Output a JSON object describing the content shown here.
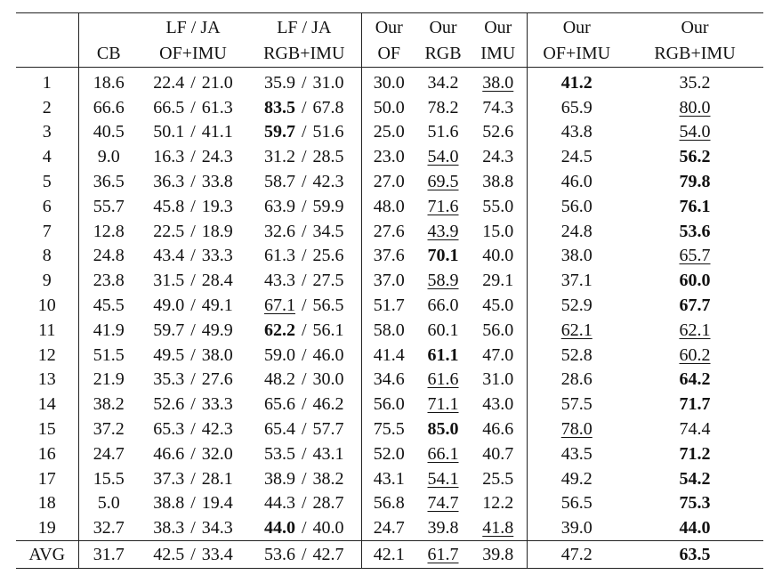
{
  "table": {
    "header_top": [
      "",
      "",
      "LF / JA",
      "LF / JA",
      "Our",
      "Our",
      "Our",
      "Our",
      "Our"
    ],
    "header_bottom": [
      "",
      "CB",
      "OF+IMU",
      "RGB+IMU",
      "OF",
      "RGB",
      "IMU",
      "OF+IMU",
      "RGB+IMU"
    ],
    "rows": [
      {
        "label": "1",
        "cb": "18.6",
        "lf_of": [
          "22.4",
          "21.0"
        ],
        "lf_rgb": [
          "35.9",
          "31.0"
        ],
        "of": "30.0",
        "rgb": "34.2",
        "imu": "38.0",
        "of_imu": "41.2",
        "rgb_imu": "35.2"
      },
      {
        "label": "2",
        "cb": "66.6",
        "lf_of": [
          "66.5",
          "61.3"
        ],
        "lf_rgb": [
          "83.5",
          "67.8"
        ],
        "of": "50.0",
        "rgb": "78.2",
        "imu": "74.3",
        "of_imu": "65.9",
        "rgb_imu": "80.0"
      },
      {
        "label": "3",
        "cb": "40.5",
        "lf_of": [
          "50.1",
          "41.1"
        ],
        "lf_rgb": [
          "59.7",
          "51.6"
        ],
        "of": "25.0",
        "rgb": "51.6",
        "imu": "52.6",
        "of_imu": "43.8",
        "rgb_imu": "54.0"
      },
      {
        "label": "4",
        "cb": "9.0",
        "lf_of": [
          "16.3",
          "24.3"
        ],
        "lf_rgb": [
          "31.2",
          "28.5"
        ],
        "of": "23.0",
        "rgb": "54.0",
        "imu": "24.3",
        "of_imu": "24.5",
        "rgb_imu": "56.2"
      },
      {
        "label": "5",
        "cb": "36.5",
        "lf_of": [
          "36.3",
          "33.8"
        ],
        "lf_rgb": [
          "58.7",
          "42.3"
        ],
        "of": "27.0",
        "rgb": "69.5",
        "imu": "38.8",
        "of_imu": "46.0",
        "rgb_imu": "79.8"
      },
      {
        "label": "6",
        "cb": "55.7",
        "lf_of": [
          "45.8",
          "19.3"
        ],
        "lf_rgb": [
          "63.9",
          "59.9"
        ],
        "of": "48.0",
        "rgb": "71.6",
        "imu": "55.0",
        "of_imu": "56.0",
        "rgb_imu": "76.1"
      },
      {
        "label": "7",
        "cb": "12.8",
        "lf_of": [
          "22.5",
          "18.9"
        ],
        "lf_rgb": [
          "32.6",
          "34.5"
        ],
        "of": "27.6",
        "rgb": "43.9",
        "imu": "15.0",
        "of_imu": "24.8",
        "rgb_imu": "53.6"
      },
      {
        "label": "8",
        "cb": "24.8",
        "lf_of": [
          "43.4",
          "33.3"
        ],
        "lf_rgb": [
          "61.3",
          "25.6"
        ],
        "of": "37.6",
        "rgb": "70.1",
        "imu": "40.0",
        "of_imu": "38.0",
        "rgb_imu": "65.7"
      },
      {
        "label": "9",
        "cb": "23.8",
        "lf_of": [
          "31.5",
          "28.4"
        ],
        "lf_rgb": [
          "43.3",
          "27.5"
        ],
        "of": "37.0",
        "rgb": "58.9",
        "imu": "29.1",
        "of_imu": "37.1",
        "rgb_imu": "60.0"
      },
      {
        "label": "10",
        "cb": "45.5",
        "lf_of": [
          "49.0",
          "49.1"
        ],
        "lf_rgb": [
          "67.1",
          "56.5"
        ],
        "of": "51.7",
        "rgb": "66.0",
        "imu": "45.0",
        "of_imu": "52.9",
        "rgb_imu": "67.7"
      },
      {
        "label": "11",
        "cb": "41.9",
        "lf_of": [
          "59.7",
          "49.9"
        ],
        "lf_rgb": [
          "62.2",
          "56.1"
        ],
        "of": "58.0",
        "rgb": "60.1",
        "imu": "56.0",
        "of_imu": "62.1",
        "rgb_imu": "62.1"
      },
      {
        "label": "12",
        "cb": "51.5",
        "lf_of": [
          "49.5",
          "38.0"
        ],
        "lf_rgb": [
          "59.0",
          "46.0"
        ],
        "of": "41.4",
        "rgb": "61.1",
        "imu": "47.0",
        "of_imu": "52.8",
        "rgb_imu": "60.2"
      },
      {
        "label": "13",
        "cb": "21.9",
        "lf_of": [
          "35.3",
          "27.6"
        ],
        "lf_rgb": [
          "48.2",
          "30.0"
        ],
        "of": "34.6",
        "rgb": "61.6",
        "imu": "31.0",
        "of_imu": "28.6",
        "rgb_imu": "64.2"
      },
      {
        "label": "14",
        "cb": "38.2",
        "lf_of": [
          "52.6",
          "33.3"
        ],
        "lf_rgb": [
          "65.6",
          "46.2"
        ],
        "of": "56.0",
        "rgb": "71.1",
        "imu": "43.0",
        "of_imu": "57.5",
        "rgb_imu": "71.7"
      },
      {
        "label": "15",
        "cb": "37.2",
        "lf_of": [
          "65.3",
          "42.3"
        ],
        "lf_rgb": [
          "65.4",
          "57.7"
        ],
        "of": "75.5",
        "rgb": "85.0",
        "imu": "46.6",
        "of_imu": "78.0",
        "rgb_imu": "74.4"
      },
      {
        "label": "16",
        "cb": "24.7",
        "lf_of": [
          "46.6",
          "32.0"
        ],
        "lf_rgb": [
          "53.5",
          "43.1"
        ],
        "of": "52.0",
        "rgb": "66.1",
        "imu": "40.7",
        "of_imu": "43.5",
        "rgb_imu": "71.2"
      },
      {
        "label": "17",
        "cb": "15.5",
        "lf_of": [
          "37.3",
          "28.1"
        ],
        "lf_rgb": [
          "38.9",
          "38.2"
        ],
        "of": "43.1",
        "rgb": "54.1",
        "imu": "25.5",
        "of_imu": "49.2",
        "rgb_imu": "54.2"
      },
      {
        "label": "18",
        "cb": "5.0",
        "lf_of": [
          "38.8",
          "19.4"
        ],
        "lf_rgb": [
          "44.3",
          "28.7"
        ],
        "of": "56.8",
        "rgb": "74.7",
        "imu": "12.2",
        "of_imu": "56.5",
        "rgb_imu": "75.3"
      },
      {
        "label": "19",
        "cb": "32.7",
        "lf_of": [
          "38.3",
          "34.3"
        ],
        "lf_rgb": [
          "44.0",
          "40.0"
        ],
        "of": "24.7",
        "rgb": "39.8",
        "imu": "41.8",
        "of_imu": "39.0",
        "rgb_imu": "44.0"
      }
    ],
    "avg": {
      "label": "AVG",
      "cb": "31.7",
      "lf_of": [
        "42.5",
        "33.4"
      ],
      "lf_rgb": [
        "53.6",
        "42.7"
      ],
      "of": "42.1",
      "rgb": "61.7",
      "imu": "39.8",
      "of_imu": "47.2",
      "rgb_imu": "63.5"
    },
    "bold_cells": {
      "1": [
        "of_imu"
      ],
      "2": [
        "lf_rgb.0"
      ],
      "3": [
        "lf_rgb.0"
      ],
      "4": [
        "rgb_imu"
      ],
      "5": [
        "rgb_imu"
      ],
      "6": [
        "rgb_imu"
      ],
      "7": [
        "rgb_imu"
      ],
      "8": [
        "rgb"
      ],
      "9": [
        "rgb_imu"
      ],
      "10": [
        "rgb_imu"
      ],
      "11": [
        "lf_rgb.0"
      ],
      "12": [
        "rgb"
      ],
      "13": [
        "rgb_imu"
      ],
      "14": [
        "rgb_imu"
      ],
      "15": [
        "rgb"
      ],
      "16": [
        "rgb_imu"
      ],
      "17": [
        "rgb_imu"
      ],
      "18": [
        "rgb_imu"
      ],
      "19": [
        "lf_rgb.0",
        "rgb_imu"
      ],
      "AVG": [
        "rgb_imu"
      ]
    },
    "underlined_cells": {
      "1": [
        "imu"
      ],
      "2": [
        "rgb_imu"
      ],
      "3": [
        "rgb_imu"
      ],
      "4": [
        "rgb"
      ],
      "5": [
        "rgb"
      ],
      "6": [
        "rgb"
      ],
      "7": [
        "rgb"
      ],
      "8": [
        "rgb_imu"
      ],
      "9": [
        "rgb"
      ],
      "10": [
        "lf_rgb.0"
      ],
      "11": [
        "of_imu",
        "rgb_imu"
      ],
      "12": [
        "rgb_imu"
      ],
      "13": [
        "rgb"
      ],
      "14": [
        "rgb"
      ],
      "15": [
        "of_imu"
      ],
      "16": [
        "rgb"
      ],
      "17": [
        "rgb"
      ],
      "18": [
        "rgb"
      ],
      "19": [
        "imu"
      ],
      "AVG": [
        "rgb"
      ]
    }
  }
}
